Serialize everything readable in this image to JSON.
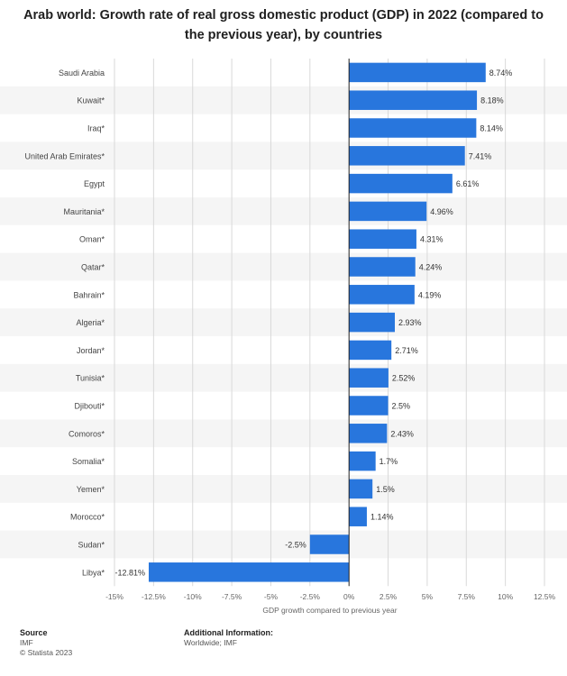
{
  "chart_data": {
    "type": "bar",
    "orientation": "horizontal",
    "title": "Arab world: Growth rate of real gross domestic product (GDP) in 2022 (compared to the previous year), by countries",
    "xlabel": "GDP growth compared to previous year",
    "ylabel": "",
    "xlim": [
      -15,
      12.5
    ],
    "x_ticks": [
      -15,
      -12.5,
      -10,
      -7.5,
      -5,
      -2.5,
      0,
      2.5,
      5,
      7.5,
      10,
      12.5
    ],
    "x_tick_labels": [
      "-15%",
      "-12.5%",
      "-10%",
      "-7.5%",
      "-5%",
      "-2.5%",
      "0%",
      "2.5%",
      "5%",
      "7.5%",
      "10%",
      "12.5%"
    ],
    "categories": [
      "Saudi Arabia",
      "Kuwait*",
      "Iraq*",
      "United Arab Emirates*",
      "Egypt",
      "Mauritania*",
      "Oman*",
      "Qatar*",
      "Bahrain*",
      "Algeria*",
      "Jordan*",
      "Tunisia*",
      "Djibouti*",
      "Comoros*",
      "Somalia*",
      "Yemen*",
      "Morocco*",
      "Sudan*",
      "Libya*"
    ],
    "values": [
      8.74,
      8.18,
      8.14,
      7.41,
      6.61,
      4.96,
      4.31,
      4.24,
      4.19,
      2.93,
      2.71,
      2.52,
      2.5,
      2.43,
      1.7,
      1.5,
      1.14,
      -2.5,
      -12.81
    ],
    "value_labels": [
      "8.74%",
      "8.18%",
      "8.14%",
      "7.41%",
      "6.61%",
      "4.96%",
      "4.31%",
      "4.24%",
      "4.19%",
      "2.93%",
      "2.71%",
      "2.52%",
      "2.5%",
      "2.43%",
      "1.7%",
      "1.5%",
      "1.14%",
      "-2.5%",
      "-12.81%"
    ],
    "grid": true,
    "legend": "none",
    "bar_color": "#2876dd"
  },
  "footer": {
    "source_heading": "Source",
    "source_name": "IMF",
    "copyright": "© Statista 2023",
    "additional_heading": "Additional Information:",
    "additional_text": "Worldwide; IMF"
  }
}
